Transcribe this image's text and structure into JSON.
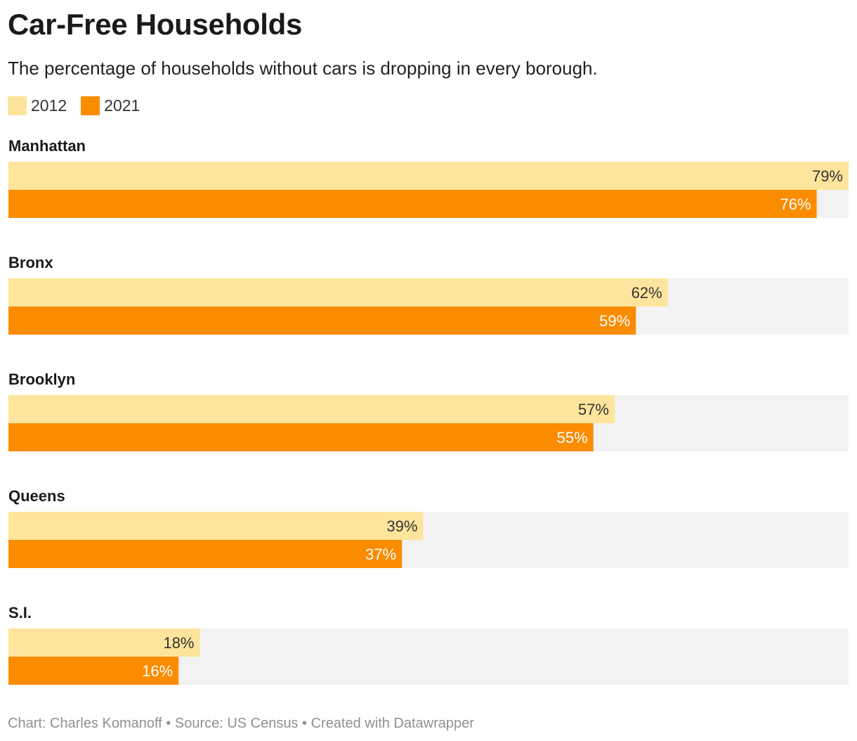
{
  "title": "Car-Free Households",
  "subtitle": "The percentage of households without cars is dropping in every borough.",
  "footer": "Chart: Charles Komanoff • Source: US Census • Created with Datawrapper",
  "colors": {
    "series_2012": "#FEE49C",
    "series_2021": "#FB8C00",
    "track": "#F2F2F2",
    "label_dark": "#333333",
    "label_light": "#ffffff"
  },
  "chart_data": {
    "type": "bar",
    "orientation": "horizontal",
    "categories": [
      "Manhattan",
      "Bronx",
      "Brooklyn",
      "Queens",
      "S.I."
    ],
    "series": [
      {
        "name": "2012",
        "values": [
          79,
          62,
          57,
          39,
          18
        ],
        "labels": [
          "79%",
          "62%",
          "57%",
          "39%",
          "18%"
        ]
      },
      {
        "name": "2021",
        "values": [
          76,
          59,
          55,
          37,
          16
        ],
        "labels": [
          "76%",
          "59%",
          "55%",
          "37%",
          "16%"
        ]
      }
    ],
    "xlim": [
      0,
      79
    ],
    "value_suffix": "%",
    "legend_position": "top-left",
    "grid": false
  }
}
